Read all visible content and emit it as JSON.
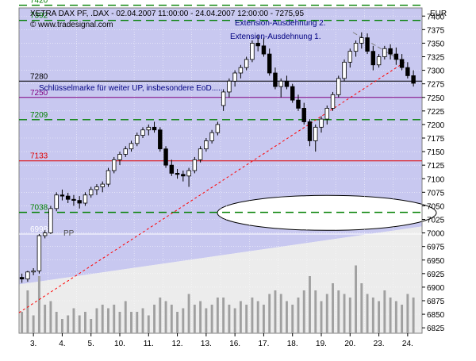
{
  "header": {
    "title": "XETRA DAX PF, .DAX - 02.04.2007 11:00:00 - 24.04.2007 12:00:00 - 7275,95",
    "watermark": "© www.tradesignal.com",
    "currency": "EUR"
  },
  "annotations": {
    "ext2": "Extension-Ausdehnung 2.",
    "ext1": "Extension-Ausdehnung 1.",
    "key_note": "Schlüsselmarke für weiter UP, insbesondere EoD.....",
    "pp": "PP"
  },
  "colors": {
    "plot_bg": "#c8c8f0",
    "candle": "#000000",
    "level_green": "#008000",
    "level_red": "#e00000",
    "level_purple": "#800080",
    "level_black": "#000000",
    "trend_red": "#ff0000",
    "triangle_gray": "#808080",
    "volume": "#a0a0a0",
    "annotation_text": "#000080"
  },
  "chart_data": {
    "type": "candlestick",
    "y_axis": {
      "min": 6815,
      "max": 7415,
      "ticks": [
        6825,
        6850,
        6875,
        6900,
        6925,
        6950,
        6975,
        7000,
        7025,
        7050,
        7075,
        7100,
        7125,
        7150,
        7175,
        7200,
        7225,
        7250,
        7275,
        7300,
        7325,
        7350,
        7375,
        7400
      ]
    },
    "x_axis": {
      "labels": [
        "3.",
        "4.",
        "5.",
        "10.",
        "11.",
        "12.",
        "13.",
        "16.",
        "17.",
        "18.",
        "19.",
        "20.",
        "23.",
        "24."
      ]
    },
    "levels": [
      {
        "value": 7420,
        "label": "7420",
        "color": "#008000",
        "style": "dashed"
      },
      {
        "value": 7392,
        "label": "7392",
        "color": "#008000",
        "style": "dashed"
      },
      {
        "value": 7280,
        "label": "7280",
        "color": "#000000",
        "style": "solid"
      },
      {
        "value": 7250,
        "label": "7250",
        "color": "#800080",
        "style": "solid"
      },
      {
        "value": 7209,
        "label": "7209",
        "color": "#008000",
        "style": "dashed"
      },
      {
        "value": 7133,
        "label": "7133",
        "color": "#e00000",
        "style": "solid"
      },
      {
        "value": 7038,
        "label": "7038",
        "color": "#008000",
        "style": "dashed"
      },
      {
        "value": 6998,
        "label": "6998",
        "color": "#ffffff",
        "style": "solid"
      }
    ],
    "trendline": {
      "start": {
        "day": 0,
        "value": 6853
      },
      "end": {
        "day": 13.4,
        "value": 7315
      }
    },
    "resistance_line": {
      "start": {
        "day": 11.6,
        "value": 7370
      },
      "end": {
        "day": 13.4,
        "value": 7314
      }
    },
    "days": [
      {
        "label": "3.",
        "ohlc": [
          [
            6918,
            6925,
            6908,
            6915
          ],
          [
            6915,
            6930,
            6910,
            6928
          ],
          [
            6928,
            6935,
            6922,
            6930
          ],
          [
            6930,
            6998,
            6925,
            6995
          ],
          [
            6995,
            7005,
            6990,
            7000
          ]
        ],
        "volume": [
          30,
          60,
          25,
          80,
          40
        ]
      },
      {
        "label": "4.",
        "ohlc": [
          [
            7000,
            7050,
            6998,
            7045
          ],
          [
            7045,
            7075,
            7040,
            7070
          ],
          [
            7070,
            7080,
            7060,
            7068
          ],
          [
            7068,
            7074,
            7055,
            7062
          ],
          [
            7062,
            7070,
            7050,
            7060
          ]
        ],
        "volume": [
          45,
          30,
          20,
          25,
          35
        ]
      },
      {
        "label": "5.",
        "ohlc": [
          [
            7060,
            7068,
            7045,
            7055
          ],
          [
            7055,
            7075,
            7050,
            7070
          ],
          [
            7070,
            7085,
            7065,
            7080
          ],
          [
            7080,
            7090,
            7070,
            7085
          ],
          [
            7085,
            7095,
            7075,
            7090
          ]
        ],
        "volume": [
          25,
          30,
          20,
          35,
          40
        ]
      },
      {
        "label": "10.",
        "ohlc": [
          [
            7090,
            7120,
            7085,
            7115
          ],
          [
            7115,
            7140,
            7110,
            7135
          ],
          [
            7135,
            7150,
            7125,
            7145
          ],
          [
            7145,
            7160,
            7140,
            7155
          ],
          [
            7155,
            7170,
            7150,
            7165
          ]
        ],
        "volume": [
          35,
          40,
          30,
          45,
          30
        ]
      },
      {
        "label": "11.",
        "ohlc": [
          [
            7165,
            7185,
            7160,
            7180
          ],
          [
            7180,
            7195,
            7175,
            7190
          ],
          [
            7190,
            7200,
            7180,
            7195
          ],
          [
            7195,
            7205,
            7185,
            7190
          ],
          [
            7190,
            7195,
            7150,
            7155
          ]
        ],
        "volume": [
          30,
          35,
          25,
          40,
          50
        ]
      },
      {
        "label": "12.",
        "ohlc": [
          [
            7155,
            7160,
            7120,
            7125
          ],
          [
            7125,
            7135,
            7105,
            7110
          ],
          [
            7110,
            7118,
            7100,
            7108
          ],
          [
            7108,
            7115,
            7095,
            7105
          ],
          [
            7105,
            7120,
            7085,
            7115
          ]
        ],
        "volume": [
          45,
          40,
          30,
          35,
          55
        ]
      },
      {
        "label": "13.",
        "ohlc": [
          [
            7115,
            7140,
            7110,
            7135
          ],
          [
            7135,
            7160,
            7130,
            7155
          ],
          [
            7155,
            7175,
            7150,
            7170
          ],
          [
            7170,
            7190,
            7165,
            7185
          ],
          [
            7185,
            7205,
            7180,
            7200
          ]
        ],
        "volume": [
          40,
          45,
          35,
          40,
          50
        ]
      },
      {
        "label": "16.",
        "ohlc": [
          [
            7235,
            7265,
            7225,
            7260
          ],
          [
            7260,
            7285,
            7250,
            7280
          ],
          [
            7280,
            7300,
            7270,
            7295
          ],
          [
            7295,
            7310,
            7285,
            7305
          ],
          [
            7305,
            7325,
            7300,
            7320
          ]
        ],
        "volume": [
          50,
          40,
          35,
          45,
          40
        ]
      },
      {
        "label": "17.",
        "ohlc": [
          [
            7320,
            7355,
            7315,
            7350
          ],
          [
            7350,
            7365,
            7335,
            7345
          ],
          [
            7345,
            7360,
            7325,
            7330
          ],
          [
            7330,
            7340,
            7290,
            7295
          ],
          [
            7295,
            7305,
            7265,
            7270
          ]
        ],
        "volume": [
          50,
          45,
          40,
          55,
          60
        ]
      },
      {
        "label": "18.",
        "ohlc": [
          [
            7270,
            7285,
            7250,
            7280
          ],
          [
            7280,
            7290,
            7265,
            7270
          ],
          [
            7270,
            7275,
            7240,
            7245
          ],
          [
            7245,
            7255,
            7225,
            7230
          ],
          [
            7230,
            7240,
            7200,
            7205
          ]
        ],
        "volume": [
          55,
          45,
          40,
          50,
          60
        ]
      },
      {
        "label": "19.",
        "ohlc": [
          [
            7205,
            7210,
            7160,
            7170
          ],
          [
            7170,
            7200,
            7150,
            7195
          ],
          [
            7195,
            7215,
            7185,
            7210
          ],
          [
            7210,
            7235,
            7200,
            7230
          ],
          [
            7230,
            7260,
            7225,
            7255
          ]
        ],
        "volume": [
          80,
          60,
          45,
          55,
          70
        ]
      },
      {
        "label": "20.",
        "ohlc": [
          [
            7255,
            7290,
            7250,
            7285
          ],
          [
            7285,
            7320,
            7280,
            7315
          ],
          [
            7315,
            7340,
            7305,
            7335
          ],
          [
            7335,
            7355,
            7325,
            7350
          ],
          [
            7350,
            7370,
            7340,
            7360
          ]
        ],
        "volume": [
          60,
          55,
          50,
          95,
          70
        ]
      },
      {
        "label": "23.",
        "ohlc": [
          [
            7360,
            7368,
            7330,
            7335
          ],
          [
            7335,
            7345,
            7300,
            7310
          ],
          [
            7310,
            7330,
            7305,
            7325
          ],
          [
            7325,
            7345,
            7320,
            7340
          ],
          [
            7340,
            7348,
            7320,
            7330
          ]
        ],
        "volume": [
          55,
          50,
          45,
          60,
          50
        ]
      },
      {
        "label": "24.",
        "ohlc": [
          [
            7330,
            7342,
            7310,
            7320
          ],
          [
            7320,
            7330,
            7300,
            7305
          ],
          [
            7305,
            7315,
            7285,
            7290
          ],
          [
            7290,
            7300,
            7270,
            7276
          ]
        ],
        "volume": [
          45,
          40,
          55,
          50
        ]
      }
    ]
  }
}
